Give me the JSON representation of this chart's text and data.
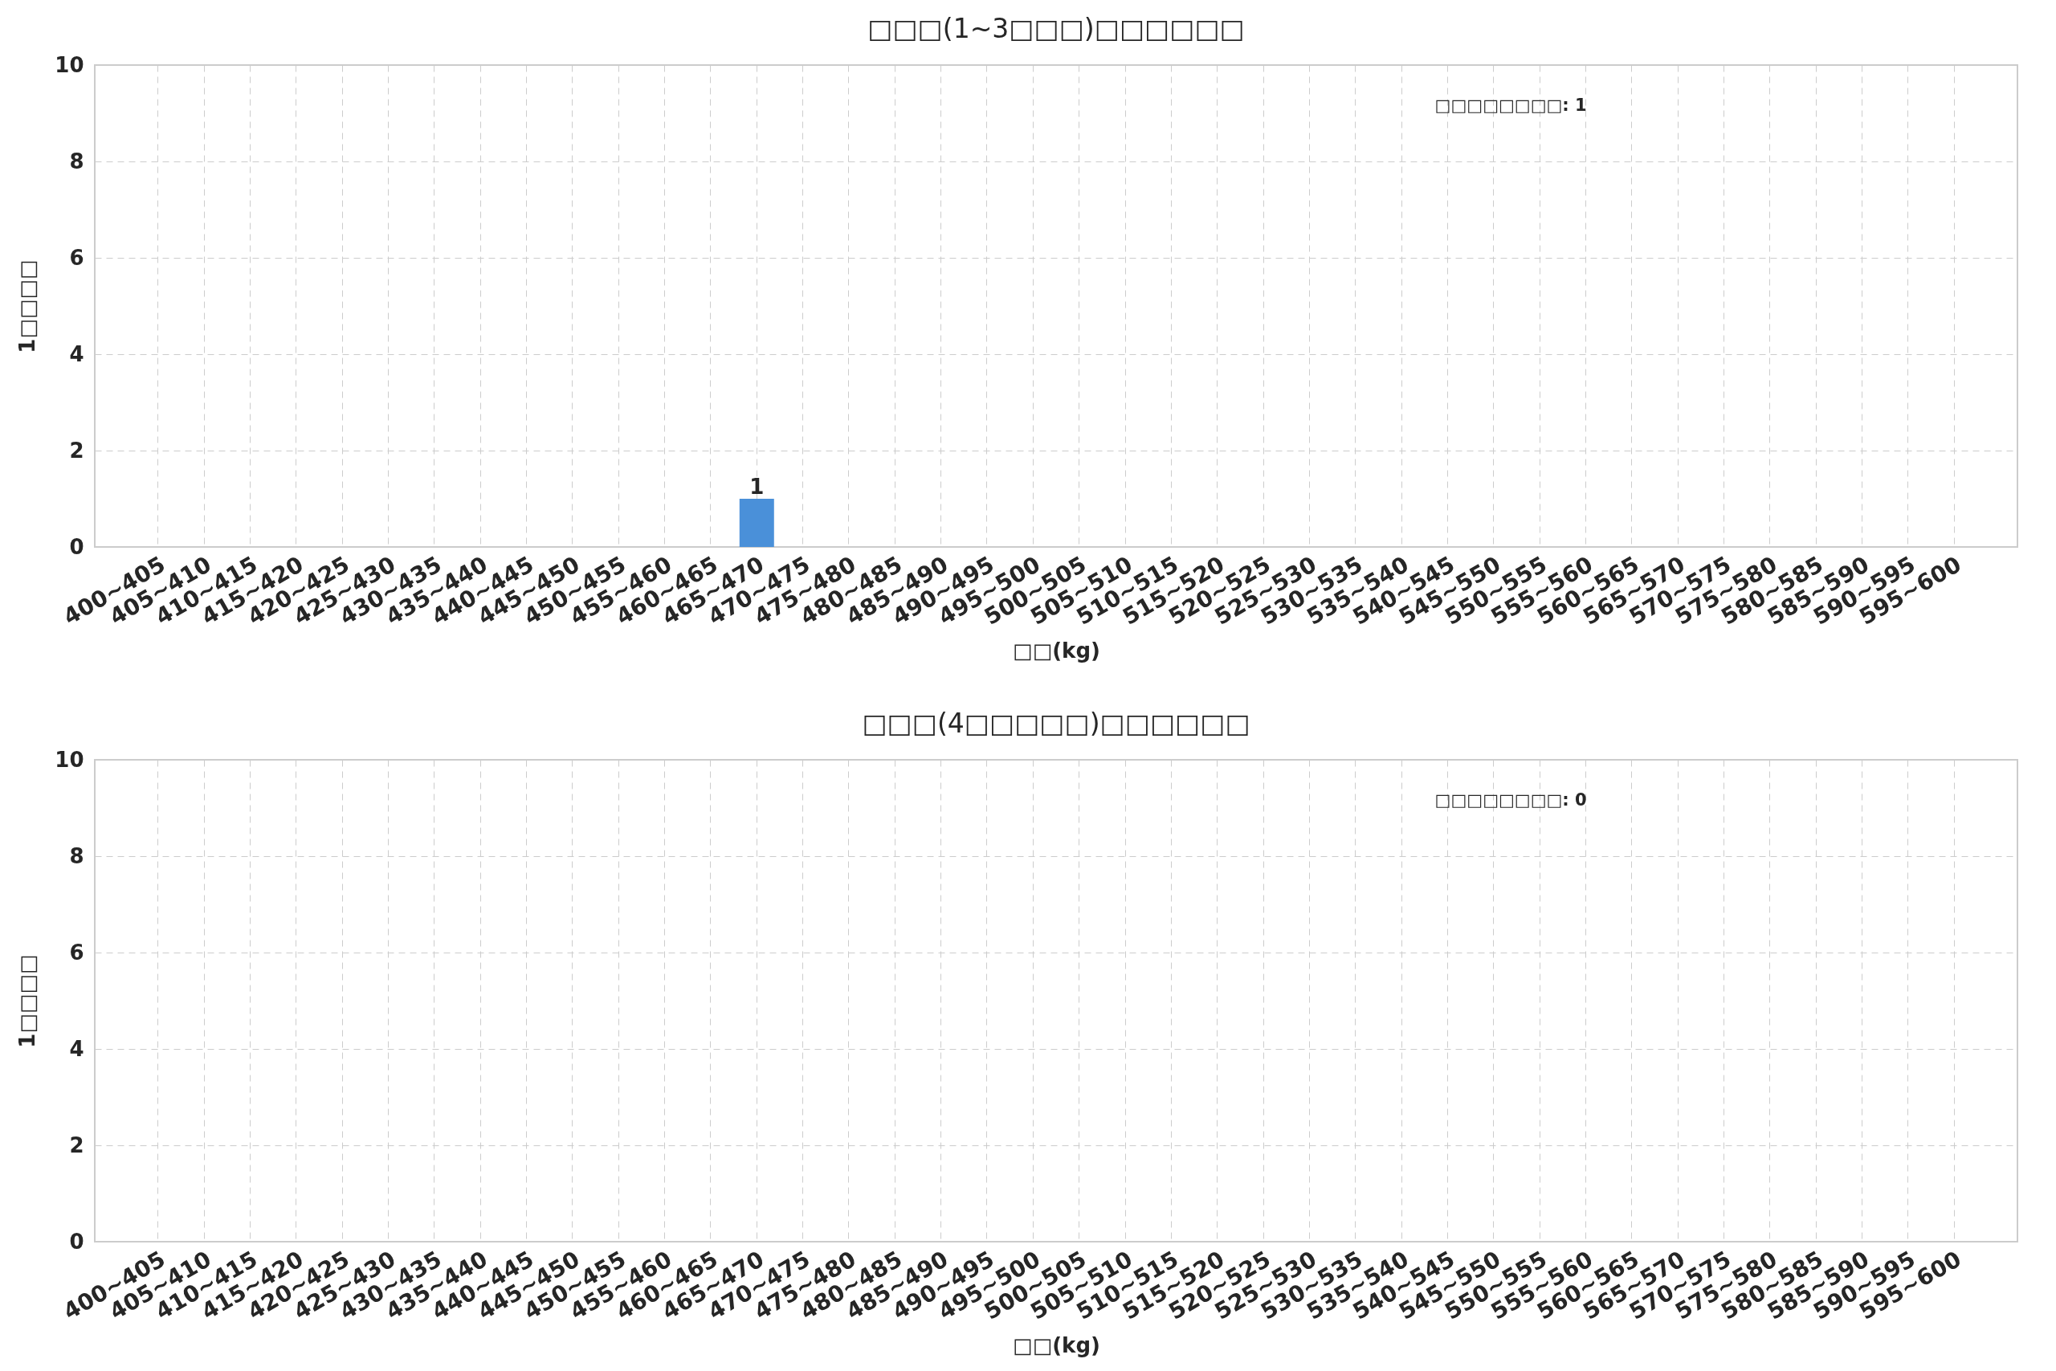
{
  "chart_data": [
    {
      "type": "bar",
      "title": "□□□(1~3□□□)□□□□□□",
      "xlabel": "□□(kg)",
      "ylabel": "1□□□□",
      "categories": [
        "400~405",
        "405~410",
        "410~415",
        "415~420",
        "420~425",
        "425~430",
        "430~435",
        "435~440",
        "440~445",
        "445~450",
        "450~455",
        "455~460",
        "460~465",
        "465~470",
        "470~475",
        "475~480",
        "480~485",
        "485~490",
        "490~495",
        "495~500",
        "500~505",
        "505~510",
        "510~515",
        "515~520",
        "520~525",
        "525~530",
        "530~535",
        "535~540",
        "540~545",
        "545~550",
        "550~555",
        "555~560",
        "560~565",
        "565~570",
        "570~575",
        "575~580",
        "580~585",
        "585~590",
        "590~595",
        "595~600"
      ],
      "values": [
        0,
        0,
        0,
        0,
        0,
        0,
        0,
        0,
        0,
        0,
        0,
        0,
        0,
        1,
        0,
        0,
        0,
        0,
        0,
        0,
        0,
        0,
        0,
        0,
        0,
        0,
        0,
        0,
        0,
        0,
        0,
        0,
        0,
        0,
        0,
        0,
        0,
        0,
        0,
        0
      ],
      "value_labels": [
        null,
        null,
        null,
        null,
        null,
        null,
        null,
        null,
        null,
        null,
        null,
        null,
        null,
        "1",
        null,
        null,
        null,
        null,
        null,
        null,
        null,
        null,
        null,
        null,
        null,
        null,
        null,
        null,
        null,
        null,
        null,
        null,
        null,
        null,
        null,
        null,
        null,
        null,
        null,
        null
      ],
      "color": "#4a90d9",
      "ylim": [
        0,
        10
      ],
      "yticks": [
        0,
        2,
        4,
        6,
        8,
        10
      ],
      "grid": true,
      "line_style": "dashed",
      "annotations": [
        "□□□□□□□□: 1"
      ]
    },
    {
      "type": "bar",
      "title": "□□□(4□□□□□)□□□□□□",
      "xlabel": "□□(kg)",
      "ylabel": "1□□□□",
      "categories": [
        "400~405",
        "405~410",
        "410~415",
        "415~420",
        "420~425",
        "425~430",
        "430~435",
        "435~440",
        "440~445",
        "445~450",
        "450~455",
        "455~460",
        "460~465",
        "465~470",
        "470~475",
        "475~480",
        "480~485",
        "485~490",
        "490~495",
        "495~500",
        "500~505",
        "505~510",
        "510~515",
        "515~520",
        "520~525",
        "525~530",
        "530~535",
        "535~540",
        "540~545",
        "545~550",
        "550~555",
        "555~560",
        "560~565",
        "565~570",
        "570~575",
        "575~580",
        "580~585",
        "585~590",
        "590~595",
        "595~600"
      ],
      "values": [
        0,
        0,
        0,
        0,
        0,
        0,
        0,
        0,
        0,
        0,
        0,
        0,
        0,
        0,
        0,
        0,
        0,
        0,
        0,
        0,
        0,
        0,
        0,
        0,
        0,
        0,
        0,
        0,
        0,
        0,
        0,
        0,
        0,
        0,
        0,
        0,
        0,
        0,
        0,
        0
      ],
      "color": "#4a90d9",
      "ylim": [
        0,
        10
      ],
      "yticks": [
        0,
        2,
        4,
        6,
        8,
        10
      ],
      "grid": true,
      "line_style": "dashed",
      "annotations": [
        "□□□□□□□□: 0"
      ]
    }
  ]
}
